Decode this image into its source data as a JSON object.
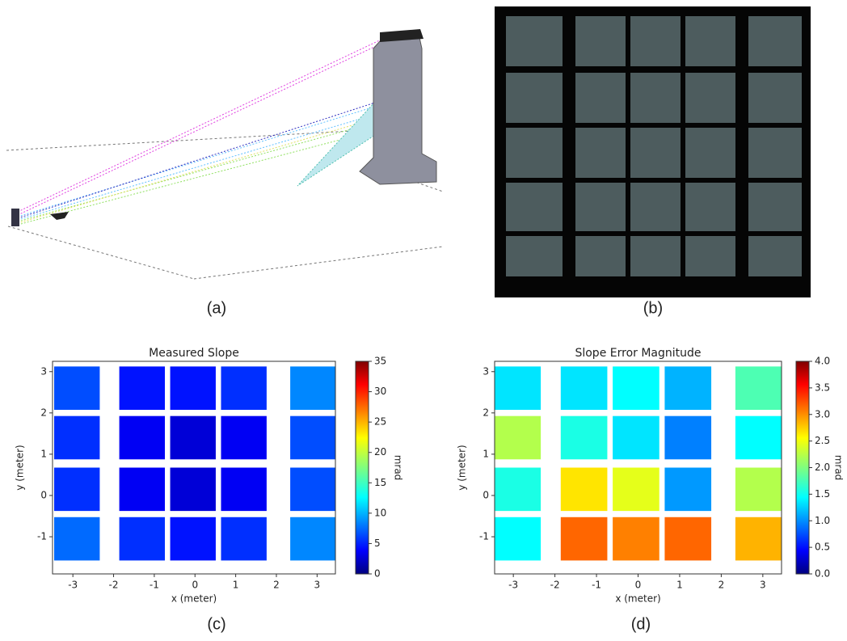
{
  "captions": [
    "(a)",
    "(b)",
    "(c)",
    "(d)"
  ],
  "chart_data": [
    {
      "type": "heatmap",
      "title": "Measured Slope",
      "xlabel": "x (meter)",
      "ylabel": "y (meter)",
      "xlim": [
        -3.5,
        3.45
      ],
      "ylim": [
        -1.9,
        3.25
      ],
      "xticks": [
        -3,
        -2,
        -1,
        0,
        1,
        2,
        3
      ],
      "yticks": [
        -1,
        0,
        1,
        2,
        3
      ],
      "x": [
        -2.9,
        -1.3,
        -0.05,
        1.2,
        2.9
      ],
      "y": [
        2.6,
        1.4,
        0.15,
        -1.05
      ],
      "values": [
        [
          7,
          5,
          5,
          6,
          9
        ],
        [
          6,
          4,
          3,
          4,
          7
        ],
        [
          6,
          4,
          3,
          4,
          7
        ],
        [
          8,
          6,
          5,
          6,
          9
        ]
      ],
      "colormap": "jet",
      "clim": [
        0,
        35
      ],
      "cticks": [
        0,
        5,
        10,
        15,
        20,
        25,
        30,
        35
      ],
      "clabel": "mrad"
    },
    {
      "type": "heatmap",
      "title": "Slope Error Magnitude",
      "xlabel": "x (meter)",
      "ylabel": "y (meter)",
      "xlim": [
        -3.45,
        3.45
      ],
      "ylim": [
        -1.9,
        3.25
      ],
      "xticks": [
        -3,
        -2,
        -1,
        0,
        1,
        2,
        3
      ],
      "yticks": [
        -1,
        0,
        1,
        2,
        3
      ],
      "x": [
        -2.9,
        -1.3,
        -0.05,
        1.2,
        2.9
      ],
      "y": [
        2.6,
        1.4,
        0.15,
        -1.05
      ],
      "values": [
        [
          1.4,
          1.4,
          1.5,
          1.2,
          1.8
        ],
        [
          2.2,
          1.6,
          1.4,
          1.0,
          1.5
        ],
        [
          1.6,
          2.6,
          2.4,
          1.1,
          2.2
        ],
        [
          1.5,
          3.1,
          3.0,
          3.1,
          2.8
        ]
      ],
      "colormap": "jet",
      "clim": [
        0,
        4
      ],
      "cticks": [
        {
          "value": 0,
          "label": "0.0"
        },
        0.5,
        {
          "value": 1,
          "label": "1.0"
        },
        1.5,
        {
          "value": 2,
          "label": "2.0"
        },
        2.5,
        {
          "value": 3,
          "label": "3.0"
        },
        3.5,
        {
          "value": 4,
          "label": "4.0"
        }
      ],
      "clabel": "mrad"
    }
  ]
}
